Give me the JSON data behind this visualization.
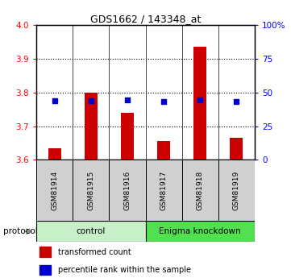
{
  "title": "GDS1662 / 143348_at",
  "samples": [
    "GSM81914",
    "GSM81915",
    "GSM81916",
    "GSM81917",
    "GSM81918",
    "GSM81919"
  ],
  "red_values": [
    3.635,
    3.8,
    3.74,
    3.655,
    3.935,
    3.665
  ],
  "blue_values": [
    3.775,
    3.775,
    3.778,
    3.773,
    3.778,
    3.773
  ],
  "ylim_left": [
    3.6,
    4.0
  ],
  "yticks_left": [
    3.6,
    3.7,
    3.8,
    3.9,
    4.0
  ],
  "yticks_right": [
    0,
    25,
    50,
    75,
    100
  ],
  "groups": [
    {
      "label": "control",
      "start": 0,
      "end": 3,
      "color": "#c8f0c8"
    },
    {
      "label": "Enigma knockdown",
      "start": 3,
      "end": 6,
      "color": "#50e050"
    }
  ],
  "protocol_label": "protocol",
  "bar_color": "#cc0000",
  "blue_color": "#0000cc",
  "bar_width": 0.35,
  "background_sample": "#d0d0d0",
  "legend_items": [
    {
      "label": "transformed count",
      "color": "#cc0000"
    },
    {
      "label": "percentile rank within the sample",
      "color": "#0000cc"
    }
  ]
}
